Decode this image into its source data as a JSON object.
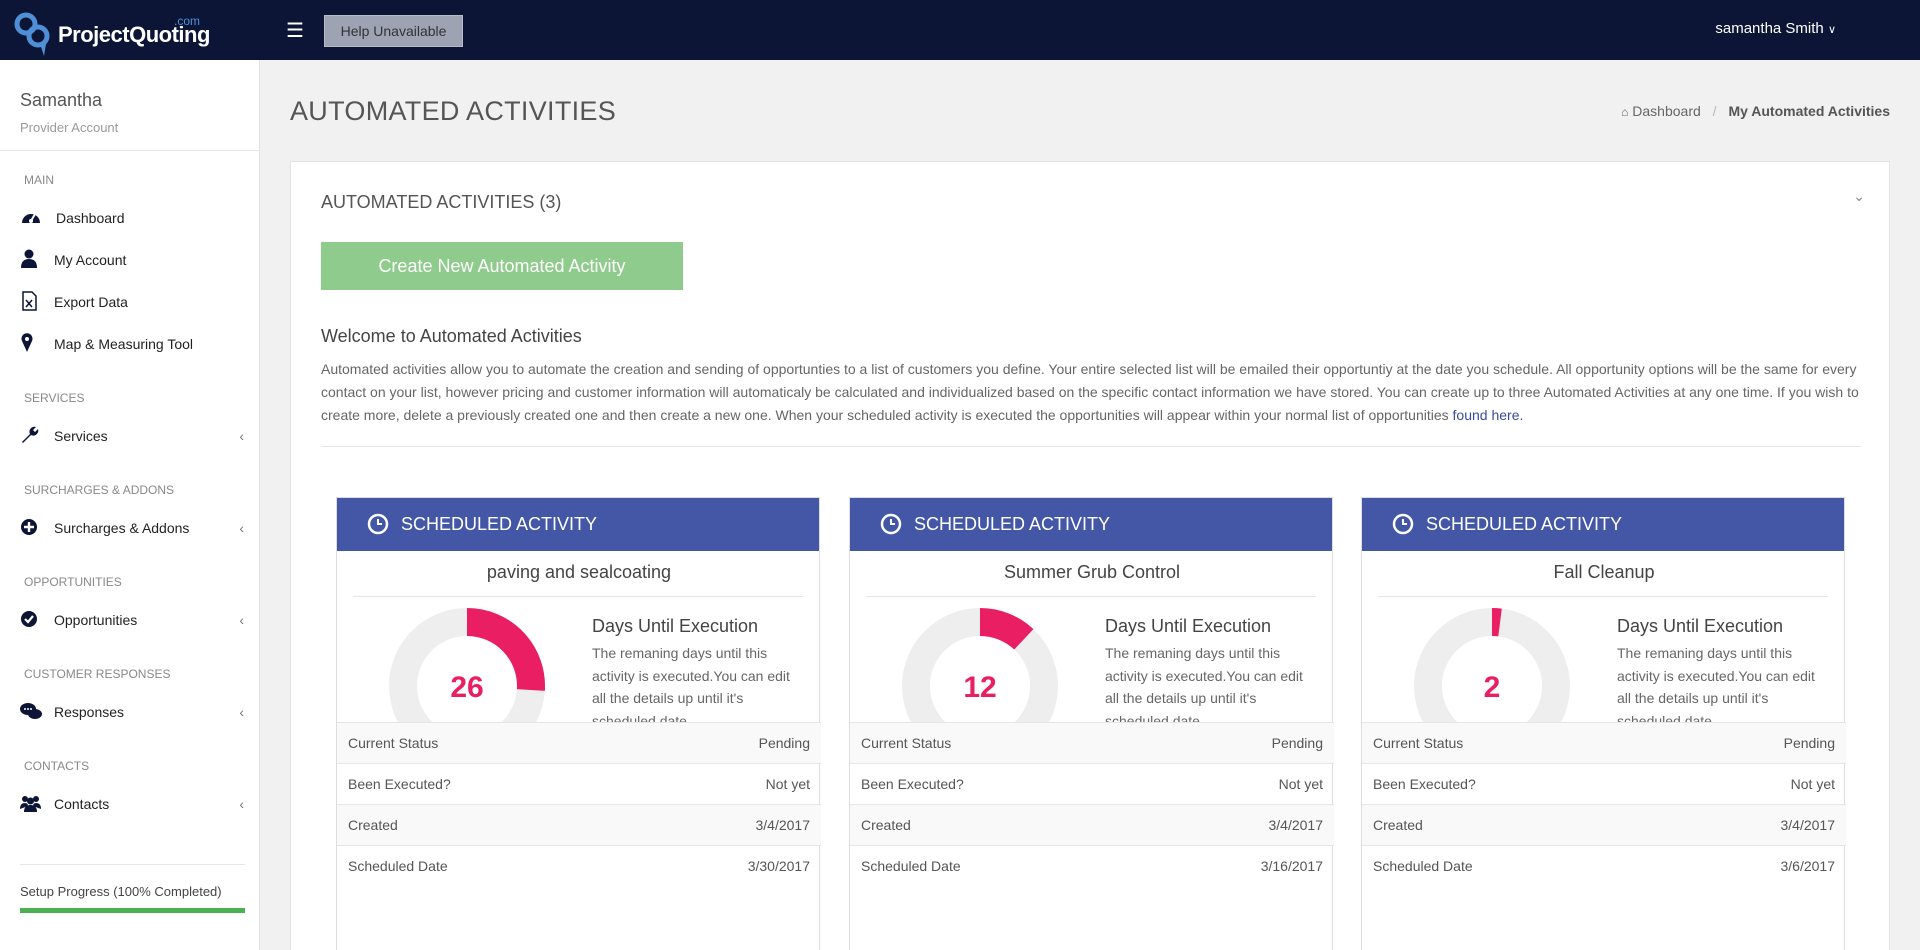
{
  "brand": {
    "name": "ProjectQuoting",
    "suffix": ".com"
  },
  "topbar": {
    "help_label": "Help Unavailable",
    "user_label": "samantha Smith"
  },
  "profile": {
    "name": "Samantha",
    "role": "Provider Account"
  },
  "sidebar": {
    "sections": [
      {
        "title": "MAIN",
        "items": [
          {
            "label": "Dashboard",
            "icon": "dashboard-icon",
            "chevron": false
          },
          {
            "label": "My Account",
            "icon": "user-icon",
            "chevron": false
          },
          {
            "label": "Export Data",
            "icon": "excel-file-icon",
            "chevron": false
          },
          {
            "label": "Map & Measuring Tool",
            "icon": "map-marker-icon",
            "chevron": false
          }
        ]
      },
      {
        "title": "SERVICES",
        "items": [
          {
            "label": "Services",
            "icon": "wrench-icon",
            "chevron": true
          }
        ]
      },
      {
        "title": "SURCHARGES & ADDONS",
        "items": [
          {
            "label": "Surcharges & Addons",
            "icon": "plus-circle-icon",
            "chevron": true
          }
        ]
      },
      {
        "title": "OPPORTUNITIES",
        "items": [
          {
            "label": "Opportunities",
            "icon": "check-circle-icon",
            "chevron": true
          }
        ]
      },
      {
        "title": "CUSTOMER RESPONSES",
        "items": [
          {
            "label": "Responses",
            "icon": "chat-bubbles-icon",
            "chevron": true
          }
        ]
      },
      {
        "title": "CONTACTS",
        "items": [
          {
            "label": "Contacts",
            "icon": "users-icon",
            "chevron": true
          }
        ]
      }
    ],
    "setup_progress_label": "Setup Progress (100% Completed)",
    "setup_progress_value": 100
  },
  "page": {
    "title": "AUTOMATED ACTIVITIES",
    "breadcrumb": {
      "home": "Dashboard",
      "current": "My Automated Activities"
    }
  },
  "panel": {
    "title": "AUTOMATED ACTIVITIES (3)",
    "create_button": "Create New Automated Activity",
    "welcome_title": "Welcome to Automated Activities",
    "welcome_text": "Automated activities allow you to automate the creation and sending of opportunties to a list of customers you define. Your entire selected list will be emailed their opportuntiy at the date you schedule. All opportunity options will be the same for every contact on your list, however pricing and customer information will automaticaly be calculated and individualized based on the specific contact information we have stored. You can create up to three Automated Activities at any one time. If you wish to create more, delete a previously created one and then create a new one. When your scheduled activity is executed the opportunities will appear within your normal list of opportunities ",
    "welcome_link": "found here."
  },
  "activities": [
    {
      "header": "SCHEDULED ACTIVITY",
      "name": "paving and sealcoating",
      "days": "26",
      "days_fraction": 0.26,
      "days_title": "Days Until Execution",
      "days_text": "The remaning days until this activity is executed.You can edit all the details up until it's scheduled date.",
      "rows": [
        {
          "label": "Current Status",
          "value": "Pending"
        },
        {
          "label": "Been Executed?",
          "value": "Not yet"
        },
        {
          "label": "Created",
          "value": "3/4/2017"
        },
        {
          "label": "Scheduled Date",
          "value": "3/30/2017"
        }
      ]
    },
    {
      "header": "SCHEDULED ACTIVITY",
      "name": "Summer Grub Control",
      "days": "12",
      "days_fraction": 0.12,
      "days_title": "Days Until Execution",
      "days_text": "The remaning days until this activity is executed.You can edit all the details up until it's scheduled date.",
      "rows": [
        {
          "label": "Current Status",
          "value": "Pending"
        },
        {
          "label": "Been Executed?",
          "value": "Not yet"
        },
        {
          "label": "Created",
          "value": "3/4/2017"
        },
        {
          "label": "Scheduled Date",
          "value": "3/16/2017"
        }
      ]
    },
    {
      "header": "SCHEDULED ACTIVITY",
      "name": "Fall Cleanup",
      "days": "2",
      "days_fraction": 0.02,
      "days_title": "Days Until Execution",
      "days_text": "The remaning days until this activity is executed.You can edit all the details up until it's scheduled date.",
      "rows": [
        {
          "label": "Current Status",
          "value": "Pending"
        },
        {
          "label": "Been Executed?",
          "value": "Not yet"
        },
        {
          "label": "Created",
          "value": "3/4/2017"
        },
        {
          "label": "Scheduled Date",
          "value": "3/6/2017"
        }
      ]
    }
  ],
  "colors": {
    "topbar": "#0c1535",
    "card_header": "#4456a6",
    "donut_accent": "#e91e63",
    "donut_track": "#eeeeee",
    "create_button": "#8fcb8c",
    "progress": "#4caf50"
  }
}
